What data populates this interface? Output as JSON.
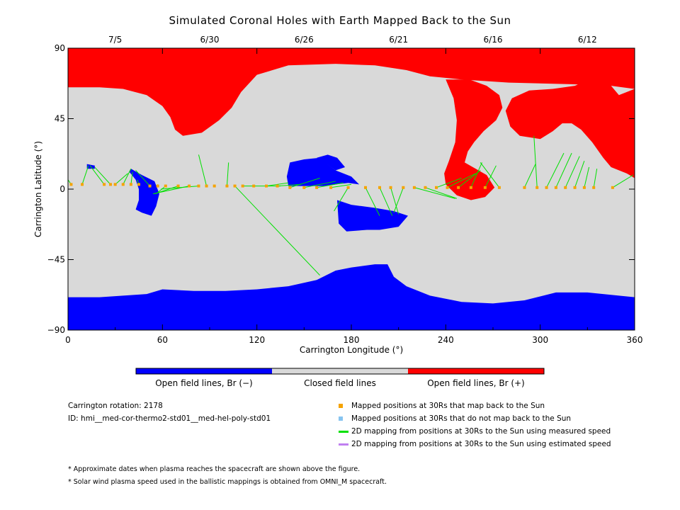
{
  "title": "Simulated Coronal Holes with Earth Mapped Back to the Sun",
  "colors": {
    "open_negative": "#0000ff",
    "closed": "#d9d9d9",
    "open_positive": "#ff0000",
    "mapped_point": "#f5a300",
    "unmapped_point": "#87c4f0",
    "measured_line": "#00e000",
    "estimated_line": "#c080f0"
  },
  "colorbar": {
    "labels": [
      "Open field lines, Br (−)",
      "Closed field lines",
      "Open field lines, Br (+)"
    ]
  },
  "info": {
    "rotation": "Carrington rotation: 2178",
    "id": "ID: hmi__med-cor-thermo2-std01__med-hel-poly-std01"
  },
  "legend": [
    {
      "label": "Mapped positions at 30Rs that map back to the Sun",
      "symbol": "square",
      "color_key": "mapped_point"
    },
    {
      "label": "Mapped positions at 30Rs that do not map back to the Sun",
      "symbol": "square",
      "color_key": "unmapped_point"
    },
    {
      "label": "2D mapping from positions at 30Rs to the Sun using measured speed",
      "symbol": "line",
      "color_key": "measured_line"
    },
    {
      "label": "2D mapping from positions at 30Rs to the Sun using estimated speed",
      "symbol": "line",
      "color_key": "estimated_line"
    }
  ],
  "notes": [
    "* Approximate dates when plasma reaches the spacecraft are shown above the figure.",
    "* Solar wind plasma speed used in the ballistic mappings is obtained from OMNI_M spacecraft."
  ],
  "chart_data": {
    "type": "scatter",
    "xlabel": "Carrington Longitude (°)",
    "ylabel": "Carrington Latitude (°)",
    "xlim": [
      0,
      360
    ],
    "ylim": [
      -90,
      90
    ],
    "x_ticks": [
      "0",
      "60",
      "120",
      "180",
      "240",
      "300",
      "360"
    ],
    "y_ticks": [
      "−90",
      "−45",
      "0",
      "45",
      "90"
    ],
    "top_axis_dates": [
      {
        "label": "7/5",
        "lon": 30
      },
      {
        "label": "6/30",
        "lon": 90
      },
      {
        "label": "6/26",
        "lon": 150
      },
      {
        "label": "6/21",
        "lon": 210
      },
      {
        "label": "6/16",
        "lon": 270
      },
      {
        "label": "6/12",
        "lon": 330
      }
    ],
    "regions": [
      {
        "name": "north-polar-positive-hole",
        "polarity": "positive",
        "outline": [
          [
            0,
            90
          ],
          [
            360,
            90
          ],
          [
            360,
            7
          ],
          [
            355,
            10
          ],
          [
            345,
            14
          ],
          [
            340,
            20
          ],
          [
            333,
            30
          ],
          [
            326,
            38
          ],
          [
            320,
            42
          ],
          [
            314,
            42
          ],
          [
            308,
            37
          ],
          [
            300,
            32
          ],
          [
            287,
            34
          ],
          [
            281,
            40
          ],
          [
            278,
            50
          ],
          [
            282,
            58
          ],
          [
            293,
            63
          ],
          [
            308,
            64
          ],
          [
            322,
            66
          ],
          [
            331,
            70
          ],
          [
            338,
            70
          ],
          [
            345,
            66
          ],
          [
            350,
            60
          ],
          [
            360,
            64
          ],
          [
            360,
            64
          ],
          [
            345,
            66
          ],
          [
            320,
            67
          ],
          [
            280,
            68
          ],
          [
            250,
            70
          ],
          [
            230,
            72
          ],
          [
            215,
            76
          ],
          [
            195,
            79
          ],
          [
            170,
            80
          ],
          [
            140,
            79
          ],
          [
            120,
            73
          ],
          [
            110,
            62
          ],
          [
            104,
            52
          ],
          [
            96,
            44
          ],
          [
            85,
            36
          ],
          [
            73,
            34
          ],
          [
            68,
            38
          ],
          [
            65,
            46
          ],
          [
            60,
            53
          ],
          [
            50,
            60
          ],
          [
            35,
            64
          ],
          [
            20,
            65
          ],
          [
            0,
            65
          ]
        ]
      },
      {
        "name": "north-mid-positive-hole",
        "polarity": "positive",
        "outline": [
          [
            240,
            70
          ],
          [
            245,
            58
          ],
          [
            247,
            44
          ],
          [
            246,
            30
          ],
          [
            242,
            18
          ],
          [
            239,
            10
          ],
          [
            240,
            3
          ],
          [
            247,
            -4
          ],
          [
            256,
            -7
          ],
          [
            265,
            -5
          ],
          [
            271,
            1
          ],
          [
            266,
            9
          ],
          [
            259,
            13
          ],
          [
            252,
            17
          ],
          [
            254,
            24
          ],
          [
            258,
            30
          ],
          [
            264,
            37
          ],
          [
            272,
            44
          ],
          [
            276,
            52
          ],
          [
            274,
            60
          ],
          [
            266,
            66
          ],
          [
            255,
            70
          ]
        ]
      },
      {
        "name": "south-polar-negative-hole",
        "polarity": "negative",
        "outline": [
          [
            0,
            -69
          ],
          [
            20,
            -69
          ],
          [
            50,
            -67
          ],
          [
            60,
            -64
          ],
          [
            80,
            -65
          ],
          [
            100,
            -65
          ],
          [
            120,
            -64
          ],
          [
            140,
            -62
          ],
          [
            158,
            -58
          ],
          [
            170,
            -52
          ],
          [
            180,
            -50
          ],
          [
            195,
            -48
          ],
          [
            203,
            -48
          ],
          [
            207,
            -56
          ],
          [
            215,
            -62
          ],
          [
            230,
            -68
          ],
          [
            250,
            -72
          ],
          [
            270,
            -73
          ],
          [
            290,
            -71
          ],
          [
            310,
            -66
          ],
          [
            330,
            -66
          ],
          [
            350,
            -68
          ],
          [
            360,
            -69
          ],
          [
            360,
            -90
          ],
          [
            0,
            -90
          ]
        ]
      },
      {
        "name": "mid-negative-hole-1",
        "polarity": "negative",
        "outline": [
          [
            40,
            13
          ],
          [
            47,
            9
          ],
          [
            55,
            5
          ],
          [
            58,
            -3
          ],
          [
            56,
            -11
          ],
          [
            53,
            -17
          ],
          [
            47,
            -15
          ],
          [
            43,
            -13
          ],
          [
            45,
            -7
          ],
          [
            45,
            0
          ],
          [
            43,
            6
          ],
          [
            39,
            11
          ]
        ]
      },
      {
        "name": "mid-negative-hole-2",
        "polarity": "negative",
        "outline": [
          [
            12,
            16
          ],
          [
            17,
            15
          ],
          [
            17,
            13
          ],
          [
            12,
            13
          ]
        ]
      },
      {
        "name": "mid-negative-hole-3",
        "polarity": "negative",
        "outline": [
          [
            140,
            2
          ],
          [
            162,
            2
          ],
          [
            178,
            4
          ],
          [
            185,
            3
          ],
          [
            180,
            8
          ],
          [
            170,
            12
          ],
          [
            162,
            18
          ],
          [
            160,
            20
          ],
          [
            150,
            19
          ],
          [
            141,
            17
          ],
          [
            139,
            8
          ]
        ]
      },
      {
        "name": "mid-negative-hole-4",
        "polarity": "negative",
        "outline": [
          [
            158,
            20
          ],
          [
            165,
            22
          ],
          [
            171,
            20
          ],
          [
            176,
            14
          ],
          [
            170,
            12
          ],
          [
            163,
            17
          ]
        ]
      },
      {
        "name": "mid-negative-hole-5",
        "polarity": "negative",
        "outline": [
          [
            171,
            -7
          ],
          [
            180,
            -10
          ],
          [
            195,
            -12
          ],
          [
            207,
            -14
          ],
          [
            216,
            -17
          ],
          [
            210,
            -24
          ],
          [
            198,
            -26
          ],
          [
            190,
            -26
          ],
          [
            177,
            -27
          ],
          [
            172,
            -22
          ]
        ]
      }
    ],
    "mapped_points": [
      {
        "lon": 2,
        "lat": 3
      },
      {
        "lon": 9,
        "lat": 3
      },
      {
        "lon": 23,
        "lat": 3
      },
      {
        "lon": 27,
        "lat": 3
      },
      {
        "lon": 30,
        "lat": 3
      },
      {
        "lon": 35,
        "lat": 3
      },
      {
        "lon": 40,
        "lat": 3
      },
      {
        "lon": 45,
        "lat": 3
      },
      {
        "lon": 52,
        "lat": 2
      },
      {
        "lon": 57,
        "lat": 2
      },
      {
        "lon": 62,
        "lat": 2
      },
      {
        "lon": 70,
        "lat": 2
      },
      {
        "lon": 77,
        "lat": 2
      },
      {
        "lon": 83,
        "lat": 2
      },
      {
        "lon": 88,
        "lat": 2
      },
      {
        "lon": 93,
        "lat": 2
      },
      {
        "lon": 101,
        "lat": 2
      },
      {
        "lon": 106,
        "lat": 2
      },
      {
        "lon": 111,
        "lat": 2
      },
      {
        "lon": 118,
        "lat": 2
      },
      {
        "lon": 126,
        "lat": 2
      },
      {
        "lon": 133,
        "lat": 2
      },
      {
        "lon": 141,
        "lat": 1
      },
      {
        "lon": 150,
        "lat": 1
      },
      {
        "lon": 158,
        "lat": 1
      },
      {
        "lon": 167,
        "lat": 1
      },
      {
        "lon": 178,
        "lat": 1
      },
      {
        "lon": 189,
        "lat": 1
      },
      {
        "lon": 198,
        "lat": 1
      },
      {
        "lon": 205,
        "lat": 1
      },
      {
        "lon": 213,
        "lat": 1
      },
      {
        "lon": 220,
        "lat": 1
      },
      {
        "lon": 227,
        "lat": 1
      },
      {
        "lon": 234,
        "lat": 1
      },
      {
        "lon": 241,
        "lat": 1
      },
      {
        "lon": 248,
        "lat": 1
      },
      {
        "lon": 256,
        "lat": 1
      },
      {
        "lon": 265,
        "lat": 1
      },
      {
        "lon": 274,
        "lat": 1
      },
      {
        "lon": 290,
        "lat": 1
      },
      {
        "lon": 298,
        "lat": 1
      },
      {
        "lon": 304,
        "lat": 1
      },
      {
        "lon": 310,
        "lat": 1
      },
      {
        "lon": 316,
        "lat": 1
      },
      {
        "lon": 322,
        "lat": 1
      },
      {
        "lon": 328,
        "lat": 1
      },
      {
        "lon": 334,
        "lat": 1
      },
      {
        "lon": 346,
        "lat": 1
      }
    ],
    "mapping_lines": [
      [
        [
          2,
          3
        ],
        [
          0,
          6
        ]
      ],
      [
        [
          9,
          3
        ],
        [
          13,
          15
        ]
      ],
      [
        [
          23,
          3
        ],
        [
          14,
          15
        ]
      ],
      [
        [
          27,
          3
        ],
        [
          17,
          14
        ]
      ],
      [
        [
          30,
          3
        ],
        [
          38,
          10
        ]
      ],
      [
        [
          35,
          3
        ],
        [
          40,
          13
        ]
      ],
      [
        [
          40,
          3
        ],
        [
          41,
          11
        ]
      ],
      [
        [
          45,
          3
        ],
        [
          44,
          6
        ]
      ],
      [
        [
          52,
          2
        ],
        [
          43,
          12
        ]
      ],
      [
        [
          57,
          2
        ],
        [
          57,
          3
        ]
      ],
      [
        [
          62,
          2
        ],
        [
          56,
          -3
        ]
      ],
      [
        [
          70,
          2
        ],
        [
          55,
          -3
        ]
      ],
      [
        [
          77,
          2
        ],
        [
          54,
          -3
        ]
      ],
      [
        [
          83,
          2
        ],
        [
          59,
          0
        ]
      ],
      [
        [
          88,
          2
        ],
        [
          83,
          22
        ]
      ],
      [
        [
          101,
          2
        ],
        [
          102,
          17
        ]
      ],
      [
        [
          106,
          2
        ],
        [
          160,
          -55
        ]
      ],
      [
        [
          111,
          2
        ],
        [
          135,
          2
        ]
      ],
      [
        [
          126,
          2
        ],
        [
          140,
          4
        ]
      ],
      [
        [
          133,
          2
        ],
        [
          148,
          3
        ]
      ],
      [
        [
          141,
          1
        ],
        [
          160,
          7
        ]
      ],
      [
        [
          150,
          1
        ],
        [
          170,
          5
        ]
      ],
      [
        [
          158,
          1
        ],
        [
          175,
          4
        ]
      ],
      [
        [
          167,
          1
        ],
        [
          180,
          3
        ]
      ],
      [
        [
          178,
          1
        ],
        [
          169,
          -14
        ]
      ],
      [
        [
          189,
          1
        ],
        [
          198,
          -17
        ]
      ],
      [
        [
          198,
          1
        ],
        [
          206,
          -17
        ]
      ],
      [
        [
          205,
          1
        ],
        [
          210,
          -16
        ]
      ],
      [
        [
          213,
          1
        ],
        [
          207,
          -15
        ]
      ],
      [
        [
          220,
          1
        ],
        [
          246,
          -6
        ]
      ],
      [
        [
          227,
          1
        ],
        [
          247,
          -6
        ]
      ],
      [
        [
          234,
          1
        ],
        [
          250,
          7
        ]
      ],
      [
        [
          241,
          1
        ],
        [
          259,
          10
        ]
      ],
      [
        [
          248,
          1
        ],
        [
          262,
          12
        ]
      ],
      [
        [
          256,
          1
        ],
        [
          263,
          17
        ]
      ],
      [
        [
          265,
          1
        ],
        [
          272,
          15
        ]
      ],
      [
        [
          274,
          1
        ],
        [
          262,
          17
        ]
      ],
      [
        [
          290,
          1
        ],
        [
          297,
          16
        ]
      ],
      [
        [
          298,
          1
        ],
        [
          296,
          34
        ]
      ],
      [
        [
          304,
          1
        ],
        [
          315,
          23
        ]
      ],
      [
        [
          310,
          1
        ],
        [
          320,
          23
        ]
      ],
      [
        [
          316,
          1
        ],
        [
          325,
          21
        ]
      ],
      [
        [
          322,
          1
        ],
        [
          328,
          18
        ]
      ],
      [
        [
          328,
          1
        ],
        [
          331,
          14
        ]
      ],
      [
        [
          334,
          1
        ],
        [
          336,
          13
        ]
      ],
      [
        [
          346,
          1
        ],
        [
          359,
          9
        ]
      ]
    ]
  }
}
